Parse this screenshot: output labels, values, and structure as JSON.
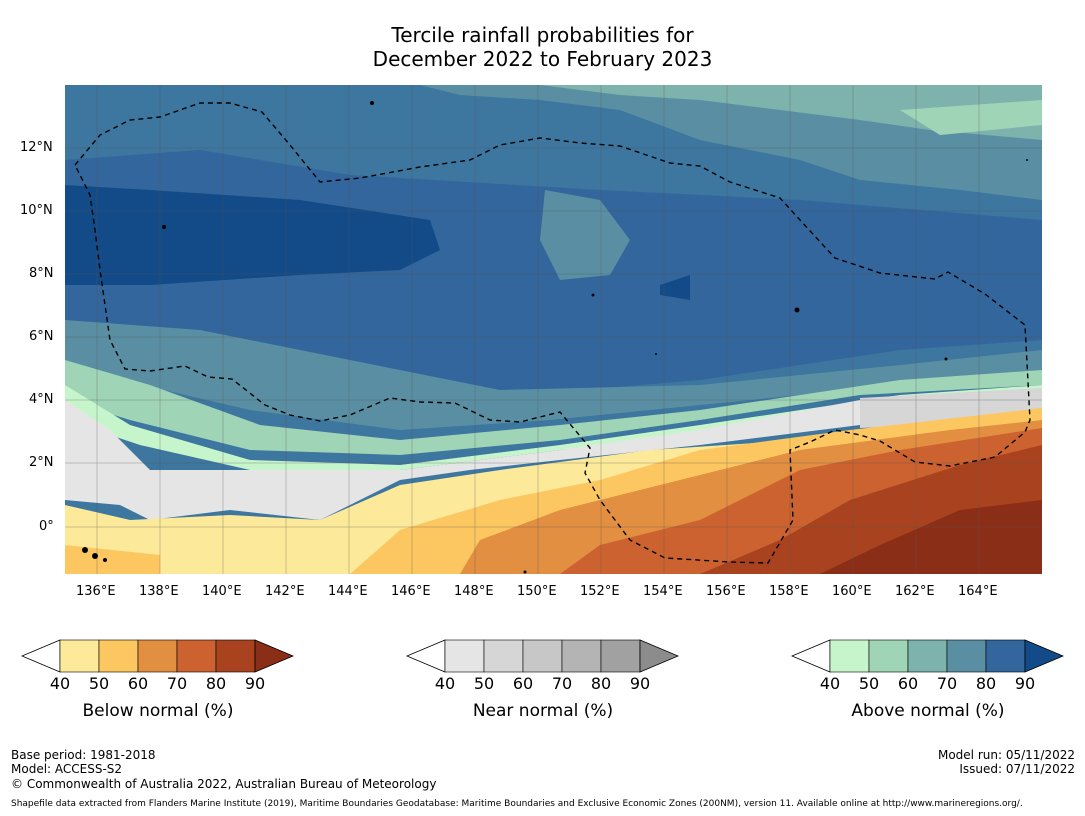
{
  "title": {
    "line1": "Tercile rainfall probabilities for",
    "line2": "December 2022 to February 2023"
  },
  "map": {
    "lon_range": [
      135,
      166
    ],
    "lat_range": [
      -1.5,
      14
    ],
    "lon_ticks": [
      "136°E",
      "138°E",
      "140°E",
      "142°E",
      "144°E",
      "146°E",
      "148°E",
      "150°E",
      "152°E",
      "154°E",
      "156°E",
      "158°E",
      "160°E",
      "162°E",
      "164°E"
    ],
    "lat_ticks": [
      "12°N",
      "10°N",
      "8°N",
      "6°N",
      "4°N",
      "2°N",
      "0°"
    ],
    "boundary_style": "dashed black line (EEZ)"
  },
  "colorbars": [
    {
      "name": "below",
      "label": "Below normal (%)",
      "ticks": [
        "40",
        "50",
        "60",
        "70",
        "80",
        "90"
      ],
      "colors": [
        "#ffffff",
        "#fde99a",
        "#fcc760",
        "#e28f41",
        "#cc6230",
        "#a9431f",
        "#8a2e18"
      ]
    },
    {
      "name": "near",
      "label": "Near normal (%)",
      "ticks": [
        "40",
        "50",
        "60",
        "70",
        "80",
        "90"
      ],
      "colors": [
        "#ffffff",
        "#e5e5e5",
        "#d6d6d6",
        "#c7c7c7",
        "#b4b4b4",
        "#a1a1a1",
        "#8c8c8c"
      ]
    },
    {
      "name": "above",
      "label": "Above normal (%)",
      "ticks": [
        "40",
        "50",
        "60",
        "70",
        "80",
        "90"
      ],
      "colors": [
        "#ffffff",
        "#c7f5cb",
        "#9fd4b7",
        "#7eb3ad",
        "#5a8fa3",
        "#33669c",
        "#124b87"
      ]
    }
  ],
  "footer": {
    "base_period": "Base period: 1981-2018",
    "model": "Model: ACCESS-S2",
    "copyright": "© Commonwealth of Australia 2022, Australian Bureau of Meteorology",
    "model_run": "Model run: 05/11/2022",
    "issued": "Issued: 07/11/2022",
    "shapefile": "Shapefile data extracted from Flanders Marine Institute (2019), Maritime Boundaries Geodatabase: Maritime Boundaries and Exclusive Economic Zones (200NM), version 11. Available online at http://www.marineregions.org/."
  }
}
